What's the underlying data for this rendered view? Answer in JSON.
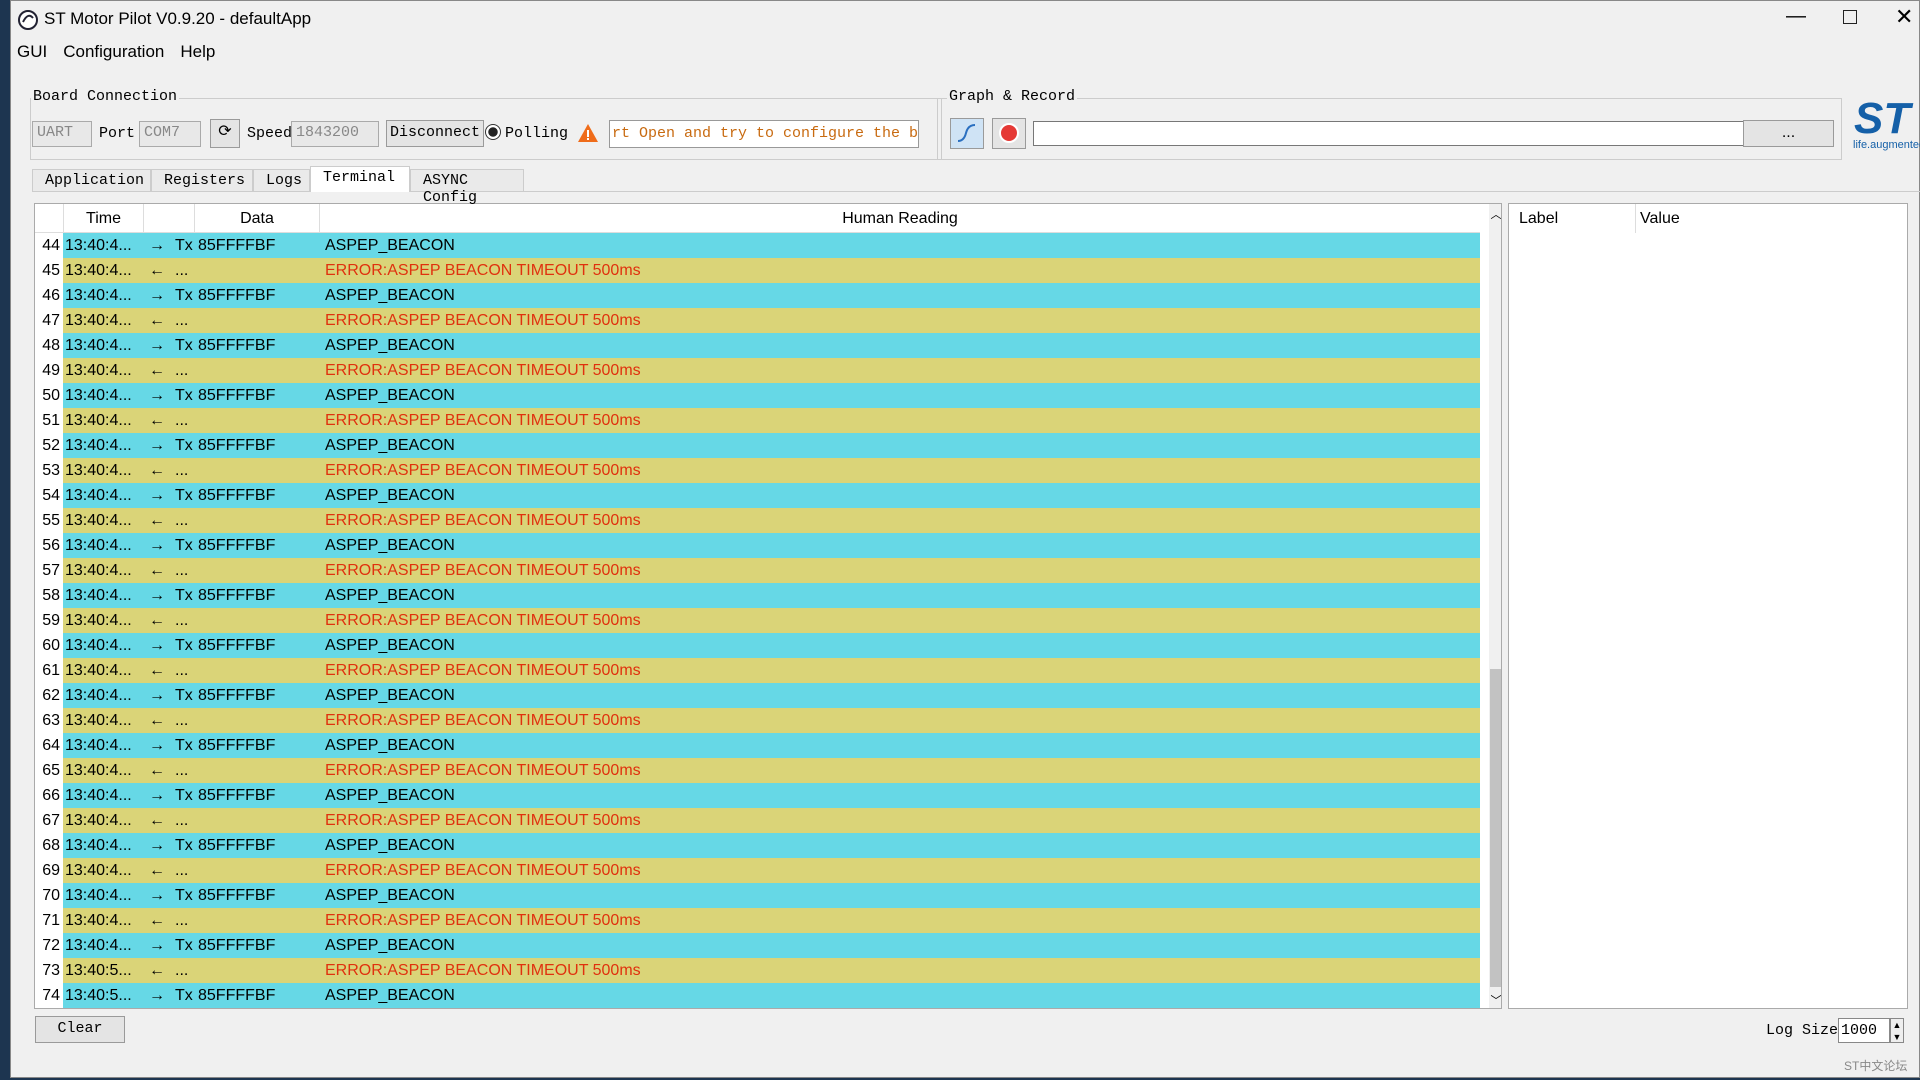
{
  "window": {
    "title": "ST Motor Pilot V0.9.20 - defaultApp"
  },
  "menu": [
    "GUI",
    "Configuration",
    "Help"
  ],
  "board_connection": {
    "title": "Board Connection",
    "protocol": "UART",
    "port_label": "Port",
    "port": "COM7",
    "speed_label": "Speed",
    "speed": "1843200",
    "disconnect": "Disconnect",
    "polling": "Polling",
    "status": "rt Open and try to configure the board"
  },
  "graph_record": {
    "title": "Graph & Record",
    "browse": "..."
  },
  "logo": {
    "brand": "ST",
    "tagline": "life.augmented"
  },
  "tabs": [
    "Application",
    "Registers",
    "Logs",
    "Terminal",
    "ASYNC Config"
  ],
  "active_tab": 3,
  "terminal": {
    "columns": [
      "Time",
      "Data",
      "Human Reading"
    ],
    "rows": [
      {
        "n": 44,
        "time": "13:40:4...",
        "arrow": "→",
        "dir": "Tx",
        "data": "85FFFFBF",
        "reading": "ASPEP_BEACON"
      },
      {
        "n": 45,
        "time": "13:40:4...",
        "arrow": "←",
        "dir": "...",
        "reading": "ERROR:ASPEP BEACON TIMEOUT 500ms"
      },
      {
        "n": 46,
        "time": "13:40:4...",
        "arrow": "→",
        "dir": "Tx",
        "data": "85FFFFBF",
        "reading": "ASPEP_BEACON"
      },
      {
        "n": 47,
        "time": "13:40:4...",
        "arrow": "←",
        "dir": "...",
        "reading": "ERROR:ASPEP BEACON TIMEOUT 500ms"
      },
      {
        "n": 48,
        "time": "13:40:4...",
        "arrow": "→",
        "dir": "Tx",
        "data": "85FFFFBF",
        "reading": "ASPEP_BEACON"
      },
      {
        "n": 49,
        "time": "13:40:4...",
        "arrow": "←",
        "dir": "...",
        "reading": "ERROR:ASPEP BEACON TIMEOUT 500ms"
      },
      {
        "n": 50,
        "time": "13:40:4...",
        "arrow": "→",
        "dir": "Tx",
        "data": "85FFFFBF",
        "reading": "ASPEP_BEACON"
      },
      {
        "n": 51,
        "time": "13:40:4...",
        "arrow": "←",
        "dir": "...",
        "reading": "ERROR:ASPEP BEACON TIMEOUT 500ms"
      },
      {
        "n": 52,
        "time": "13:40:4...",
        "arrow": "→",
        "dir": "Tx",
        "data": "85FFFFBF",
        "reading": "ASPEP_BEACON"
      },
      {
        "n": 53,
        "time": "13:40:4...",
        "arrow": "←",
        "dir": "...",
        "reading": "ERROR:ASPEP BEACON TIMEOUT 500ms"
      },
      {
        "n": 54,
        "time": "13:40:4...",
        "arrow": "→",
        "dir": "Tx",
        "data": "85FFFFBF",
        "reading": "ASPEP_BEACON"
      },
      {
        "n": 55,
        "time": "13:40:4...",
        "arrow": "←",
        "dir": "...",
        "reading": "ERROR:ASPEP BEACON TIMEOUT 500ms"
      },
      {
        "n": 56,
        "time": "13:40:4...",
        "arrow": "→",
        "dir": "Tx",
        "data": "85FFFFBF",
        "reading": "ASPEP_BEACON"
      },
      {
        "n": 57,
        "time": "13:40:4...",
        "arrow": "←",
        "dir": "...",
        "reading": "ERROR:ASPEP BEACON TIMEOUT 500ms"
      },
      {
        "n": 58,
        "time": "13:40:4...",
        "arrow": "→",
        "dir": "Tx",
        "data": "85FFFFBF",
        "reading": "ASPEP_BEACON"
      },
      {
        "n": 59,
        "time": "13:40:4...",
        "arrow": "←",
        "dir": "...",
        "reading": "ERROR:ASPEP BEACON TIMEOUT 500ms"
      },
      {
        "n": 60,
        "time": "13:40:4...",
        "arrow": "→",
        "dir": "Tx",
        "data": "85FFFFBF",
        "reading": "ASPEP_BEACON"
      },
      {
        "n": 61,
        "time": "13:40:4...",
        "arrow": "←",
        "dir": "...",
        "reading": "ERROR:ASPEP BEACON TIMEOUT 500ms"
      },
      {
        "n": 62,
        "time": "13:40:4...",
        "arrow": "→",
        "dir": "Tx",
        "data": "85FFFFBF",
        "reading": "ASPEP_BEACON"
      },
      {
        "n": 63,
        "time": "13:40:4...",
        "arrow": "←",
        "dir": "...",
        "reading": "ERROR:ASPEP BEACON TIMEOUT 500ms"
      },
      {
        "n": 64,
        "time": "13:40:4...",
        "arrow": "→",
        "dir": "Tx",
        "data": "85FFFFBF",
        "reading": "ASPEP_BEACON"
      },
      {
        "n": 65,
        "time": "13:40:4...",
        "arrow": "←",
        "dir": "...",
        "reading": "ERROR:ASPEP BEACON TIMEOUT 500ms"
      },
      {
        "n": 66,
        "time": "13:40:4...",
        "arrow": "→",
        "dir": "Tx",
        "data": "85FFFFBF",
        "reading": "ASPEP_BEACON"
      },
      {
        "n": 67,
        "time": "13:40:4...",
        "arrow": "←",
        "dir": "...",
        "reading": "ERROR:ASPEP BEACON TIMEOUT 500ms"
      },
      {
        "n": 68,
        "time": "13:40:4...",
        "arrow": "→",
        "dir": "Tx",
        "data": "85FFFFBF",
        "reading": "ASPEP_BEACON"
      },
      {
        "n": 69,
        "time": "13:40:4...",
        "arrow": "←",
        "dir": "...",
        "reading": "ERROR:ASPEP BEACON TIMEOUT 500ms"
      },
      {
        "n": 70,
        "time": "13:40:4...",
        "arrow": "→",
        "dir": "Tx",
        "data": "85FFFFBF",
        "reading": "ASPEP_BEACON"
      },
      {
        "n": 71,
        "time": "13:40:4...",
        "arrow": "←",
        "dir": "...",
        "reading": "ERROR:ASPEP BEACON TIMEOUT 500ms"
      },
      {
        "n": 72,
        "time": "13:40:4...",
        "arrow": "→",
        "dir": "Tx",
        "data": "85FFFFBF",
        "reading": "ASPEP_BEACON"
      },
      {
        "n": 73,
        "time": "13:40:5...",
        "arrow": "←",
        "dir": "...",
        "reading": "ERROR:ASPEP BEACON TIMEOUT 500ms"
      },
      {
        "n": 74,
        "time": "13:40:5...",
        "arrow": "→",
        "dir": "Tx",
        "data": "85FFFFBF",
        "reading": "ASPEP_BEACON"
      }
    ],
    "clear": "Clear",
    "log_size_label": "Log Size",
    "log_size": 1000
  },
  "side_panel": {
    "columns": [
      "Label",
      "Value"
    ]
  },
  "watermark": "ST中文论坛"
}
